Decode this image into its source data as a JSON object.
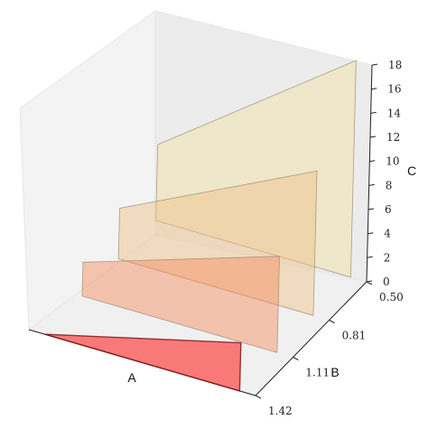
{
  "chart_data": {
    "type": "3d-polygons",
    "title": "",
    "xlabel": "A",
    "ylabel": "B",
    "zlabel": "C",
    "y_ticks": [
      "0.50",
      "0.81",
      "1.11",
      "1.42"
    ],
    "z_ticks": [
      "0",
      "2",
      "4",
      "6",
      "8",
      "10",
      "12",
      "14",
      "16",
      "18"
    ],
    "zlim": [
      0,
      18
    ],
    "grid": false,
    "polygons": [
      {
        "b": 1.42,
        "c_height": 4,
        "color": "#ff2a2a",
        "opacity": 0.6
      },
      {
        "b": 1.11,
        "c_height": 8,
        "color": "#f48a5c",
        "opacity": 0.45
      },
      {
        "b": 0.81,
        "c_height": 12,
        "color": "#efbf86",
        "opacity": 0.45
      },
      {
        "b": 0.5,
        "c_height": 18,
        "color": "#efe1a8",
        "opacity": 0.5
      }
    ]
  }
}
